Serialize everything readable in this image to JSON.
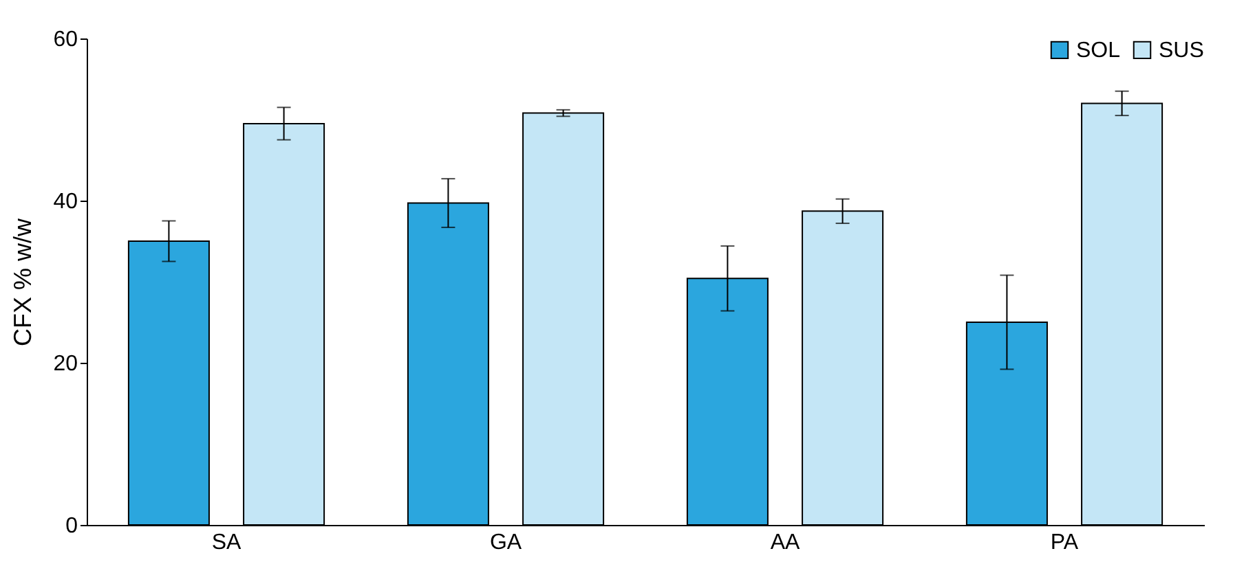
{
  "chart_data": {
    "type": "bar",
    "ylabel": "CFX % w/w",
    "categories": [
      "SA",
      "GA",
      "AA",
      "PA"
    ],
    "series": [
      {
        "name": "SOL",
        "color": "#2ba6de",
        "values": [
          35,
          39.7,
          30.4,
          25
        ],
        "errors": [
          2.5,
          3,
          4,
          5.8
        ]
      },
      {
        "name": "SUS",
        "color": "#c4e6f6",
        "values": [
          49.5,
          50.8,
          38.7,
          52
        ],
        "errors": [
          2,
          0.4,
          1.5,
          1.5
        ]
      }
    ],
    "ylim": [
      0,
      60
    ],
    "yticks": [
      0,
      20,
      40,
      60
    ],
    "grid": false,
    "legend": "top right"
  }
}
